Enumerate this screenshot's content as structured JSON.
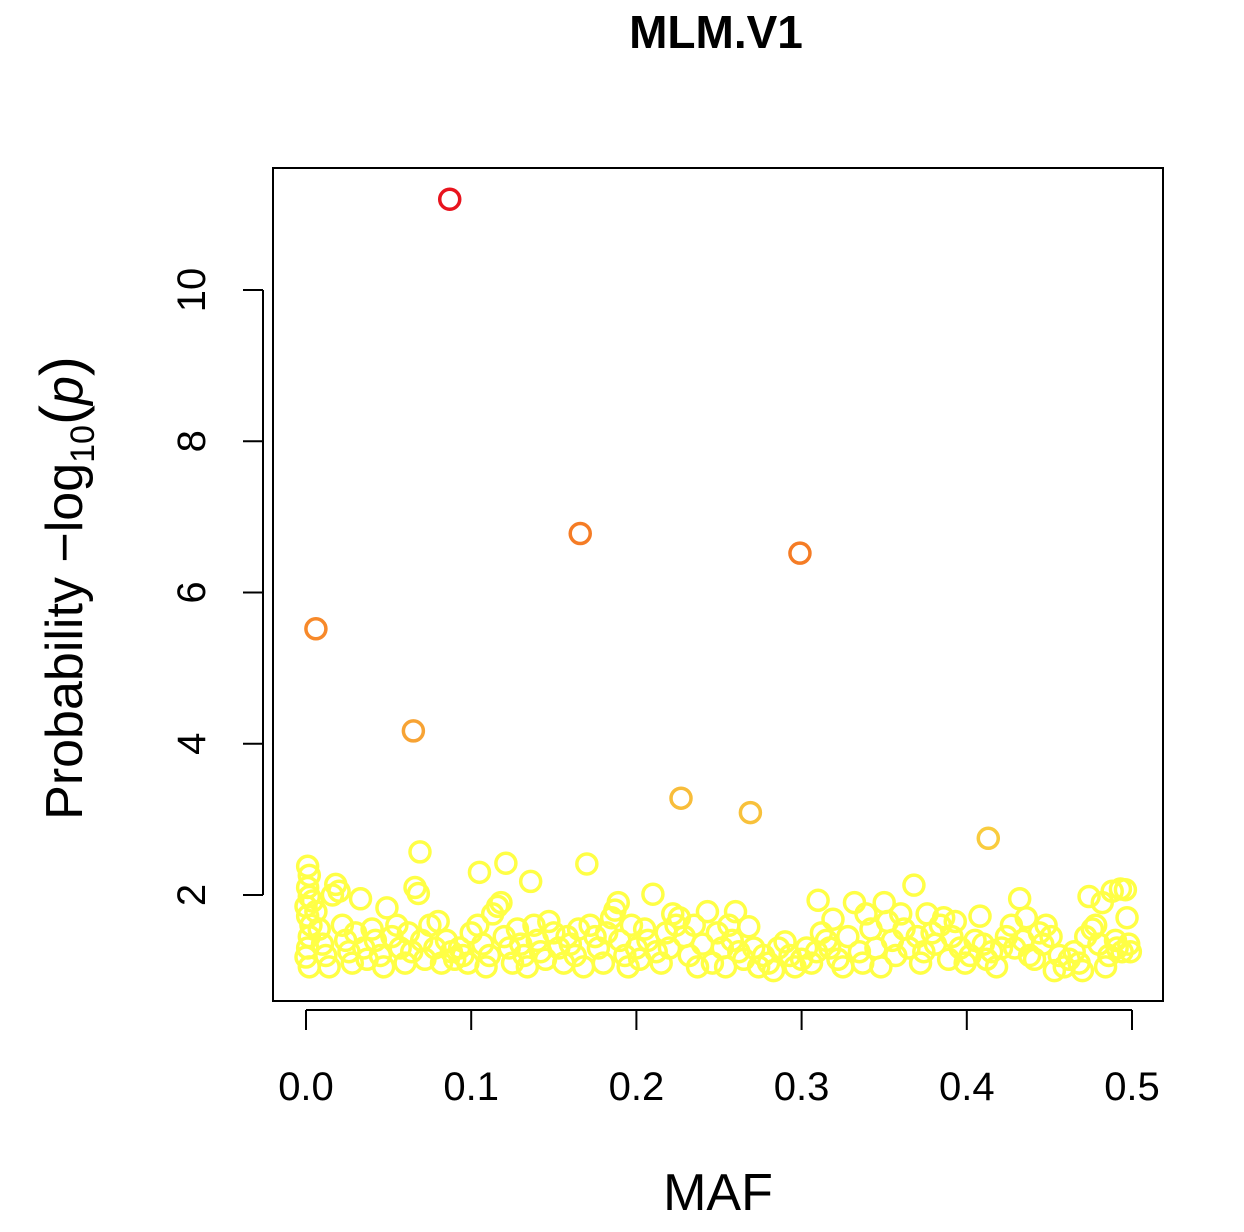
{
  "chart_data": {
    "type": "scatter",
    "title": "MLM.V1",
    "xlabel": "MAF",
    "ylabel": {
      "prefix": "Probability  −log",
      "subscript": "10",
      "paren_open": "(",
      "variable": "p",
      "paren_close": ")"
    },
    "xlim": [
      0.0,
      0.5
    ],
    "ylim": [
      0.85,
      11.6
    ],
    "xticks": [
      0.0,
      0.1,
      0.2,
      0.3,
      0.4,
      0.5
    ],
    "xtick_labels": [
      "0.0",
      "0.1",
      "0.2",
      "0.3",
      "0.4",
      "0.5"
    ],
    "yticks": [
      2,
      4,
      6,
      8,
      10
    ],
    "ytick_labels": [
      "2",
      "4",
      "6",
      "8",
      "10"
    ],
    "grid": false,
    "legend": "none",
    "colors": {
      "high": "#e8141e",
      "mid_high": "#f57c25",
      "mid": "#f7a334",
      "low": "#f6c33c",
      "base": "#ffff45"
    },
    "points_highlighted": [
      {
        "x": 0.087,
        "y": 11.2,
        "color": "#e8141e"
      },
      {
        "x": 0.166,
        "y": 6.78,
        "color": "#f57c25"
      },
      {
        "x": 0.299,
        "y": 6.52,
        "color": "#f57c25"
      },
      {
        "x": 0.006,
        "y": 5.52,
        "color": "#f7892a"
      },
      {
        "x": 0.065,
        "y": 4.17,
        "color": "#f7a334"
      },
      {
        "x": 0.227,
        "y": 3.28,
        "color": "#f8bd3a"
      },
      {
        "x": 0.269,
        "y": 3.09,
        "color": "#f8c13b"
      },
      {
        "x": 0.413,
        "y": 2.75,
        "color": "#f9cc3e"
      }
    ],
    "points_background_color": "#ffff45",
    "points_background": [
      [
        0.001,
        2.38
      ],
      [
        0.002,
        2.26
      ],
      [
        0.001,
        2.1
      ],
      [
        0.002,
        1.98
      ],
      [
        0.0,
        1.85
      ],
      [
        0.001,
        1.72
      ],
      [
        0.003,
        1.6
      ],
      [
        0.002,
        1.45
      ],
      [
        0.001,
        1.3
      ],
      [
        0.0,
        1.18
      ],
      [
        0.002,
        1.05
      ],
      [
        0.004,
        1.92
      ],
      [
        0.006,
        1.78
      ],
      [
        0.008,
        1.55
      ],
      [
        0.01,
        1.35
      ],
      [
        0.012,
        1.2
      ],
      [
        0.014,
        1.05
      ],
      [
        0.016,
        2.0
      ],
      [
        0.018,
        2.14
      ],
      [
        0.02,
        2.05
      ],
      [
        0.022,
        1.6
      ],
      [
        0.024,
        1.4
      ],
      [
        0.026,
        1.25
      ],
      [
        0.028,
        1.1
      ],
      [
        0.03,
        1.5
      ],
      [
        0.033,
        1.95
      ],
      [
        0.035,
        1.3
      ],
      [
        0.037,
        1.15
      ],
      [
        0.04,
        1.55
      ],
      [
        0.042,
        1.4
      ],
      [
        0.045,
        1.2
      ],
      [
        0.047,
        1.05
      ],
      [
        0.049,
        1.83
      ],
      [
        0.052,
        1.45
      ],
      [
        0.055,
        1.6
      ],
      [
        0.057,
        1.3
      ],
      [
        0.06,
        1.1
      ],
      [
        0.062,
        1.5
      ],
      [
        0.064,
        1.25
      ],
      [
        0.066,
        2.1
      ],
      [
        0.068,
        2.02
      ],
      [
        0.069,
        2.57
      ],
      [
        0.07,
        1.4
      ],
      [
        0.072,
        1.15
      ],
      [
        0.075,
        1.6
      ],
      [
        0.078,
        1.3
      ],
      [
        0.08,
        1.65
      ],
      [
        0.082,
        1.1
      ],
      [
        0.085,
        1.4
      ],
      [
        0.088,
        1.25
      ],
      [
        0.09,
        1.15
      ],
      [
        0.093,
        1.3
      ],
      [
        0.095,
        1.2
      ],
      [
        0.098,
        1.1
      ],
      [
        0.1,
        1.5
      ],
      [
        0.104,
        1.6
      ],
      [
        0.105,
        2.3
      ],
      [
        0.107,
        1.35
      ],
      [
        0.109,
        1.05
      ],
      [
        0.111,
        1.2
      ],
      [
        0.113,
        1.75
      ],
      [
        0.116,
        1.85
      ],
      [
        0.118,
        1.9
      ],
      [
        0.12,
        1.45
      ],
      [
        0.121,
        2.42
      ],
      [
        0.123,
        1.3
      ],
      [
        0.125,
        1.1
      ],
      [
        0.128,
        1.55
      ],
      [
        0.13,
        1.35
      ],
      [
        0.132,
        1.2
      ],
      [
        0.134,
        1.05
      ],
      [
        0.136,
        2.18
      ],
      [
        0.138,
        1.6
      ],
      [
        0.14,
        1.4
      ],
      [
        0.142,
        1.25
      ],
      [
        0.145,
        1.15
      ],
      [
        0.147,
        1.65
      ],
      [
        0.15,
        1.5
      ],
      [
        0.153,
        1.3
      ],
      [
        0.156,
        1.1
      ],
      [
        0.158,
        1.45
      ],
      [
        0.16,
        1.35
      ],
      [
        0.163,
        1.2
      ],
      [
        0.165,
        1.55
      ],
      [
        0.168,
        1.05
      ],
      [
        0.17,
        2.41
      ],
      [
        0.172,
        1.6
      ],
      [
        0.175,
        1.45
      ],
      [
        0.177,
        1.3
      ],
      [
        0.18,
        1.1
      ],
      [
        0.182,
        1.5
      ],
      [
        0.185,
        1.7
      ],
      [
        0.187,
        1.8
      ],
      [
        0.189,
        1.9
      ],
      [
        0.19,
        1.4
      ],
      [
        0.193,
        1.2
      ],
      [
        0.195,
        1.05
      ],
      [
        0.197,
        1.6
      ],
      [
        0.2,
        1.3
      ],
      [
        0.202,
        1.15
      ],
      [
        0.205,
        1.55
      ],
      [
        0.207,
        1.4
      ],
      [
        0.21,
        2.01
      ],
      [
        0.212,
        1.25
      ],
      [
        0.215,
        1.1
      ],
      [
        0.218,
        1.5
      ],
      [
        0.22,
        1.3
      ],
      [
        0.222,
        1.75
      ],
      [
        0.224,
        1.6
      ],
      [
        0.226,
        1.7
      ],
      [
        0.229,
        1.45
      ],
      [
        0.232,
        1.2
      ],
      [
        0.235,
        1.6
      ],
      [
        0.237,
        1.05
      ],
      [
        0.24,
        1.35
      ],
      [
        0.243,
        1.78
      ],
      [
        0.246,
        1.1
      ],
      [
        0.249,
        1.5
      ],
      [
        0.252,
        1.3
      ],
      [
        0.254,
        1.05
      ],
      [
        0.256,
        1.6
      ],
      [
        0.258,
        1.4
      ],
      [
        0.26,
        1.78
      ],
      [
        0.262,
        1.25
      ],
      [
        0.265,
        1.15
      ],
      [
        0.268,
        1.58
      ],
      [
        0.271,
        1.3
      ],
      [
        0.274,
        1.05
      ],
      [
        0.277,
        1.2
      ],
      [
        0.28,
        1.1
      ],
      [
        0.283,
        1.0
      ],
      [
        0.286,
        1.3
      ],
      [
        0.29,
        1.38
      ],
      [
        0.293,
        1.2
      ],
      [
        0.296,
        1.05
      ],
      [
        0.3,
        1.15
      ],
      [
        0.303,
        1.3
      ],
      [
        0.306,
        1.1
      ],
      [
        0.309,
        1.25
      ],
      [
        0.31,
        1.93
      ],
      [
        0.312,
        1.5
      ],
      [
        0.315,
        1.4
      ],
      [
        0.317,
        1.3
      ],
      [
        0.319,
        1.68
      ],
      [
        0.322,
        1.15
      ],
      [
        0.325,
        1.05
      ],
      [
        0.328,
        1.45
      ],
      [
        0.332,
        1.9
      ],
      [
        0.335,
        1.25
      ],
      [
        0.337,
        1.1
      ],
      [
        0.339,
        1.75
      ],
      [
        0.342,
        1.55
      ],
      [
        0.345,
        1.3
      ],
      [
        0.348,
        1.05
      ],
      [
        0.35,
        1.9
      ],
      [
        0.352,
        1.65
      ],
      [
        0.355,
        1.4
      ],
      [
        0.357,
        1.2
      ],
      [
        0.36,
        1.75
      ],
      [
        0.362,
        1.55
      ],
      [
        0.365,
        1.3
      ],
      [
        0.368,
        2.13
      ],
      [
        0.37,
        1.45
      ],
      [
        0.372,
        1.1
      ],
      [
        0.374,
        1.25
      ],
      [
        0.376,
        1.75
      ],
      [
        0.379,
        1.5
      ],
      [
        0.381,
        1.35
      ],
      [
        0.384,
        1.6
      ],
      [
        0.386,
        1.7
      ],
      [
        0.389,
        1.15
      ],
      [
        0.391,
        1.45
      ],
      [
        0.393,
        1.65
      ],
      [
        0.396,
        1.3
      ],
      [
        0.399,
        1.1
      ],
      [
        0.402,
        1.2
      ],
      [
        0.405,
        1.4
      ],
      [
        0.408,
        1.72
      ],
      [
        0.41,
        1.35
      ],
      [
        0.412,
        1.15
      ],
      [
        0.415,
        1.25
      ],
      [
        0.418,
        1.05
      ],
      [
        0.421,
        1.3
      ],
      [
        0.424,
        1.45
      ],
      [
        0.427,
        1.6
      ],
      [
        0.429,
        1.3
      ],
      [
        0.432,
        1.95
      ],
      [
        0.434,
        1.4
      ],
      [
        0.436,
        1.7
      ],
      [
        0.438,
        1.2
      ],
      [
        0.441,
        1.15
      ],
      [
        0.444,
        1.5
      ],
      [
        0.446,
        1.35
      ],
      [
        0.448,
        1.6
      ],
      [
        0.451,
        1.45
      ],
      [
        0.453,
        1.0
      ],
      [
        0.456,
        1.2
      ],
      [
        0.459,
        1.05
      ],
      [
        0.462,
        1.15
      ],
      [
        0.465,
        1.25
      ],
      [
        0.468,
        1.1
      ],
      [
        0.47,
        1.0
      ],
      [
        0.472,
        1.45
      ],
      [
        0.474,
        1.98
      ],
      [
        0.476,
        1.55
      ],
      [
        0.478,
        1.6
      ],
      [
        0.48,
        1.35
      ],
      [
        0.482,
        1.9
      ],
      [
        0.484,
        1.05
      ],
      [
        0.486,
        1.2
      ],
      [
        0.488,
        2.05
      ],
      [
        0.49,
        1.4
      ],
      [
        0.491,
        1.3
      ],
      [
        0.493,
        2.08
      ],
      [
        0.494,
        1.25
      ],
      [
        0.496,
        2.07
      ],
      [
        0.497,
        1.7
      ],
      [
        0.498,
        1.35
      ],
      [
        0.499,
        1.25
      ]
    ]
  }
}
